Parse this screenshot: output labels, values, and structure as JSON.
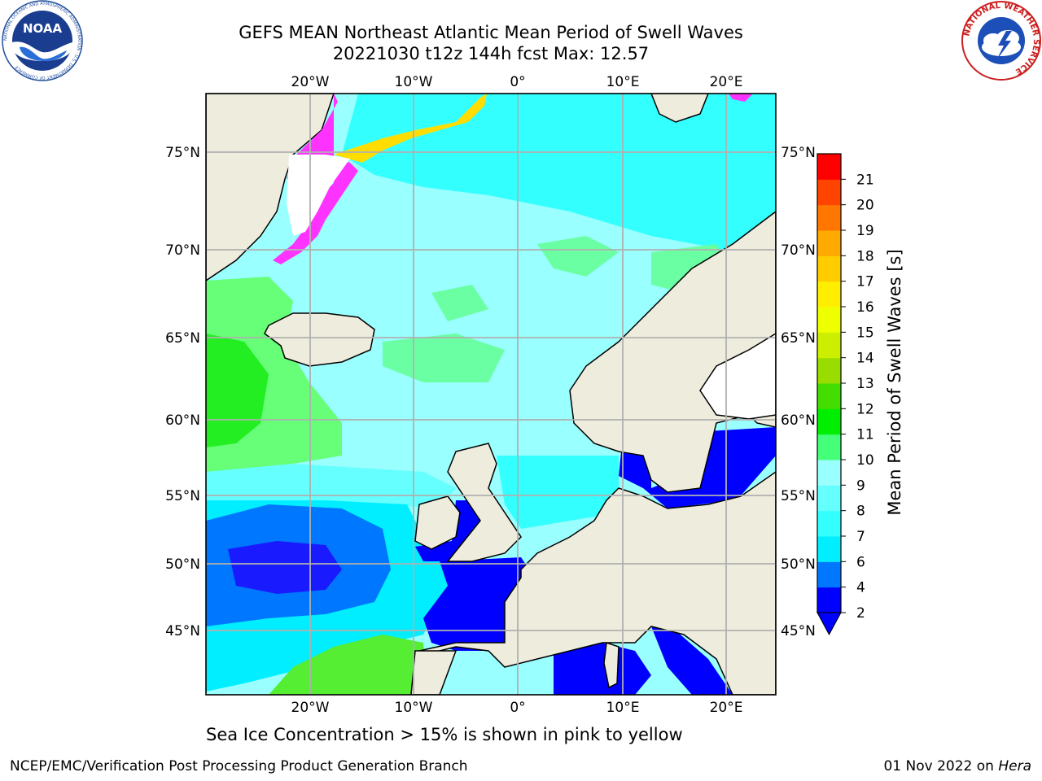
{
  "title": {
    "line1": "GEFS MEAN Northeast Atlantic Mean Period of Swell Waves",
    "line2": "20221030 t12z 144h fcst   Max: 12.57"
  },
  "map": {
    "lon_labels": [
      "20°W",
      "10°W",
      "0°",
      "10°E",
      "20°E"
    ],
    "lat_labels": [
      "75°N",
      "70°N",
      "65°N",
      "60°N",
      "55°N",
      "50°N",
      "45°N"
    ],
    "land_color": "#eeecdc",
    "sea_ice_colors": [
      "#ff00ff",
      "#ff66cc",
      "#ffcc00",
      "#ffff00"
    ]
  },
  "colorbar": {
    "label": "Mean Period of Swell Waves [s]",
    "ticks": [
      "2",
      "4",
      "6",
      "7",
      "8",
      "9",
      "10",
      "11",
      "12",
      "13",
      "14",
      "15",
      "16",
      "17",
      "18",
      "19",
      "20",
      "21"
    ],
    "colors": [
      "#0000ff",
      "#0077ff",
      "#00eeff",
      "#33ffff",
      "#66ffff",
      "#99ffff",
      "#44ff77",
      "#00ee00",
      "#44dd00",
      "#99dd00",
      "#ccee00",
      "#eeff00",
      "#ffee00",
      "#ffcc00",
      "#ffaa00",
      "#ff7700",
      "#ff4400",
      "#ff0000"
    ],
    "extend": "min"
  },
  "caption": "Sea Ice Concentration > 15% is shown in pink to yellow",
  "footer": {
    "left": "NCEP/EMC/Verification Post Processing Product Generation Branch",
    "date": "01 Nov 2022 on ",
    "host": "Hera"
  },
  "logos": {
    "noaa_text": "NOAA",
    "noaa_ring": "NATIONAL OCEANIC AND ATMOSPHERIC ADMINISTRATION · U.S. DEPARTMENT OF COMMERCE",
    "nws_ring": "NATIONAL WEATHER SERVICE"
  }
}
